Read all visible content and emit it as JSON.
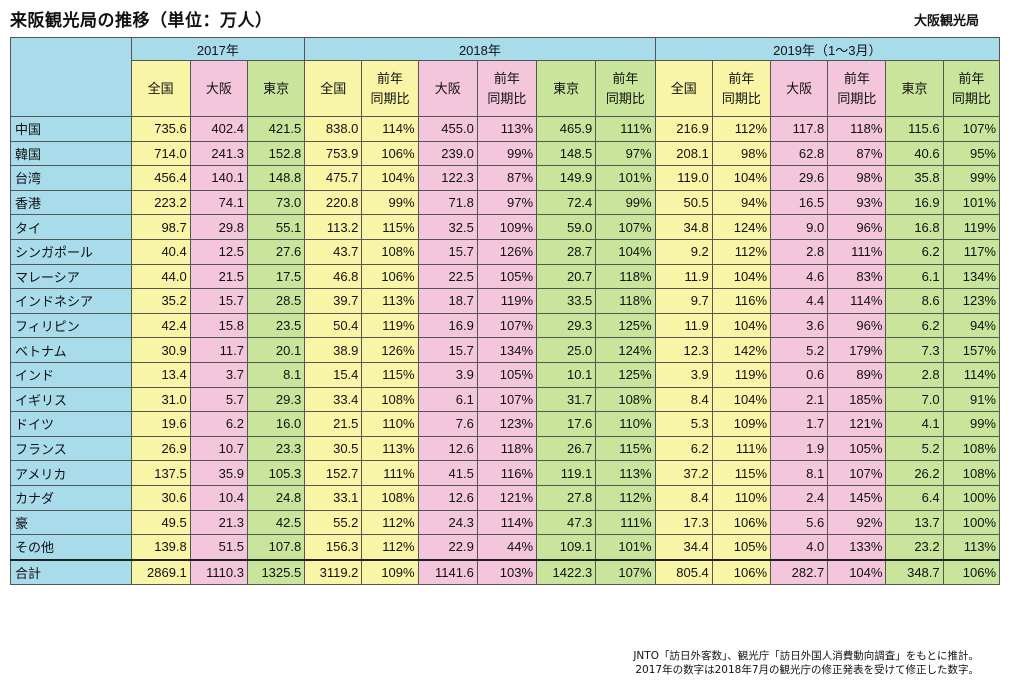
{
  "title": "来阪観光局の推移（単位：万人）",
  "source_org": "大阪観光局",
  "header": {
    "groups": [
      "2017年",
      "2018年",
      "2019年（1～3月）"
    ],
    "cols_2017": [
      "全国",
      "大阪",
      "東京"
    ],
    "cols_2018": [
      "全国",
      "前年\n同期比",
      "大阪",
      "前年\n同期比",
      "東京",
      "前年\n同期比"
    ],
    "cols_2019": [
      "全国",
      "前年\n同期比",
      "大阪",
      "前年\n同期比",
      "東京",
      "前年\n同期比"
    ]
  },
  "rows": [
    {
      "label": "中国",
      "v": [
        "735.6",
        "402.4",
        "421.5",
        "838.0",
        "114%",
        "455.0",
        "113%",
        "465.9",
        "111%",
        "216.9",
        "112%",
        "117.8",
        "118%",
        "115.6",
        "107%"
      ]
    },
    {
      "label": "韓国",
      "v": [
        "714.0",
        "241.3",
        "152.8",
        "753.9",
        "106%",
        "239.0",
        "99%",
        "148.5",
        "97%",
        "208.1",
        "98%",
        "62.8",
        "87%",
        "40.6",
        "95%"
      ]
    },
    {
      "label": "台湾",
      "v": [
        "456.4",
        "140.1",
        "148.8",
        "475.7",
        "104%",
        "122.3",
        "87%",
        "149.9",
        "101%",
        "119.0",
        "104%",
        "29.6",
        "98%",
        "35.8",
        "99%"
      ]
    },
    {
      "label": "香港",
      "v": [
        "223.2",
        "74.1",
        "73.0",
        "220.8",
        "99%",
        "71.8",
        "97%",
        "72.4",
        "99%",
        "50.5",
        "94%",
        "16.5",
        "93%",
        "16.9",
        "101%"
      ]
    },
    {
      "label": "タイ",
      "v": [
        "98.7",
        "29.8",
        "55.1",
        "113.2",
        "115%",
        "32.5",
        "109%",
        "59.0",
        "107%",
        "34.8",
        "124%",
        "9.0",
        "96%",
        "16.8",
        "119%"
      ]
    },
    {
      "label": "シンガポール",
      "v": [
        "40.4",
        "12.5",
        "27.6",
        "43.7",
        "108%",
        "15.7",
        "126%",
        "28.7",
        "104%",
        "9.2",
        "112%",
        "2.8",
        "111%",
        "6.2",
        "117%"
      ]
    },
    {
      "label": "マレーシア",
      "v": [
        "44.0",
        "21.5",
        "17.5",
        "46.8",
        "106%",
        "22.5",
        "105%",
        "20.7",
        "118%",
        "11.9",
        "104%",
        "4.6",
        "83%",
        "6.1",
        "134%"
      ]
    },
    {
      "label": "インドネシア",
      "v": [
        "35.2",
        "15.7",
        "28.5",
        "39.7",
        "113%",
        "18.7",
        "119%",
        "33.5",
        "118%",
        "9.7",
        "116%",
        "4.4",
        "114%",
        "8.6",
        "123%"
      ]
    },
    {
      "label": "フィリピン",
      "v": [
        "42.4",
        "15.8",
        "23.5",
        "50.4",
        "119%",
        "16.9",
        "107%",
        "29.3",
        "125%",
        "11.9",
        "104%",
        "3.6",
        "96%",
        "6.2",
        "94%"
      ]
    },
    {
      "label": "ベトナム",
      "v": [
        "30.9",
        "11.7",
        "20.1",
        "38.9",
        "126%",
        "15.7",
        "134%",
        "25.0",
        "124%",
        "12.3",
        "142%",
        "5.2",
        "179%",
        "7.3",
        "157%"
      ]
    },
    {
      "label": "インド",
      "v": [
        "13.4",
        "3.7",
        "8.1",
        "15.4",
        "115%",
        "3.9",
        "105%",
        "10.1",
        "125%",
        "3.9",
        "119%",
        "0.6",
        "89%",
        "2.8",
        "114%"
      ]
    },
    {
      "label": "イギリス",
      "v": [
        "31.0",
        "5.7",
        "29.3",
        "33.4",
        "108%",
        "6.1",
        "107%",
        "31.7",
        "108%",
        "8.4",
        "104%",
        "2.1",
        "185%",
        "7.0",
        "91%"
      ]
    },
    {
      "label": "ドイツ",
      "v": [
        "19.6",
        "6.2",
        "16.0",
        "21.5",
        "110%",
        "7.6",
        "123%",
        "17.6",
        "110%",
        "5.3",
        "109%",
        "1.7",
        "121%",
        "4.1",
        "99%"
      ]
    },
    {
      "label": "フランス",
      "v": [
        "26.9",
        "10.7",
        "23.3",
        "30.5",
        "113%",
        "12.6",
        "118%",
        "26.7",
        "115%",
        "6.2",
        "111%",
        "1.9",
        "105%",
        "5.2",
        "108%"
      ]
    },
    {
      "label": "アメリカ",
      "v": [
        "137.5",
        "35.9",
        "105.3",
        "152.7",
        "111%",
        "41.5",
        "116%",
        "119.1",
        "113%",
        "37.2",
        "115%",
        "8.1",
        "107%",
        "26.2",
        "108%"
      ]
    },
    {
      "label": "カナダ",
      "v": [
        "30.6",
        "10.4",
        "24.8",
        "33.1",
        "108%",
        "12.6",
        "121%",
        "27.8",
        "112%",
        "8.4",
        "110%",
        "2.4",
        "145%",
        "6.4",
        "100%"
      ]
    },
    {
      "label": "豪",
      "v": [
        "49.5",
        "21.3",
        "42.5",
        "55.2",
        "112%",
        "24.3",
        "114%",
        "47.3",
        "111%",
        "17.3",
        "106%",
        "5.6",
        "92%",
        "13.7",
        "100%"
      ]
    },
    {
      "label": "その他",
      "v": [
        "139.8",
        "51.5",
        "107.8",
        "156.3",
        "112%",
        "22.9",
        "44%",
        "109.1",
        "101%",
        "34.4",
        "105%",
        "4.0",
        "133%",
        "23.2",
        "113%"
      ]
    }
  ],
  "total": {
    "label": "合計",
    "v": [
      "2869.1",
      "1110.3",
      "1325.5",
      "3119.2",
      "109%",
      "1141.6",
      "103%",
      "1422.3",
      "107%",
      "805.4",
      "106%",
      "282.7",
      "104%",
      "348.7",
      "106%"
    ]
  },
  "notes": [
    "JNTO「訪日外客数」、観光庁「訪日外国人消費動向調査」をもとに推計。",
    "2017年の数字は2018年7月の観光庁の修正発表を受けて修正した数字。"
  ],
  "colors": {
    "header_blue": "#a9dcea",
    "all_yellow": "#f9f5a6",
    "osaka_pink": "#f3c6dc",
    "tokyo_green": "#c9e59b"
  }
}
